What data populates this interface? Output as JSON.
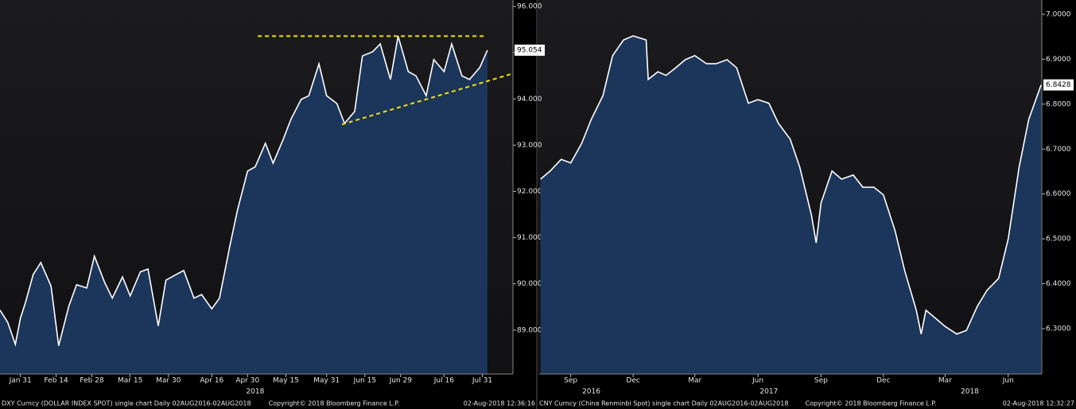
{
  "chart_data": [
    {
      "type": "area",
      "x": [
        "2018-01-23",
        "2018-01-26",
        "2018-01-29",
        "2018-01-31",
        "2018-02-02",
        "2018-02-05",
        "2018-02-08",
        "2018-02-12",
        "2018-02-15",
        "2018-02-19",
        "2018-02-22",
        "2018-02-26",
        "2018-03-01",
        "2018-03-05",
        "2018-03-08",
        "2018-03-12",
        "2018-03-15",
        "2018-03-19",
        "2018-03-22",
        "2018-03-26",
        "2018-03-29",
        "2018-04-02",
        "2018-04-05",
        "2018-04-09",
        "2018-04-12",
        "2018-04-16",
        "2018-04-19",
        "2018-04-23",
        "2018-04-26",
        "2018-04-30",
        "2018-05-03",
        "2018-05-07",
        "2018-05-10",
        "2018-05-14",
        "2018-05-17",
        "2018-05-21",
        "2018-05-24",
        "2018-05-28",
        "2018-05-31",
        "2018-06-04",
        "2018-06-07",
        "2018-06-11",
        "2018-06-14",
        "2018-06-18",
        "2018-06-21",
        "2018-06-25",
        "2018-06-28",
        "2018-07-02",
        "2018-07-05",
        "2018-07-09",
        "2018-07-12",
        "2018-07-16",
        "2018-07-19",
        "2018-07-23",
        "2018-07-26",
        "2018-07-30",
        "2018-08-02"
      ],
      "values": [
        89.43,
        89.17,
        88.69,
        89.26,
        89.6,
        90.2,
        90.46,
        89.95,
        88.66,
        89.52,
        89.98,
        89.91,
        90.6,
        90.03,
        89.69,
        90.15,
        89.74,
        90.26,
        90.32,
        89.09,
        90.08,
        90.2,
        90.29,
        89.69,
        89.77,
        89.46,
        89.69,
        90.8,
        91.58,
        92.44,
        92.53,
        93.04,
        92.61,
        93.13,
        93.56,
        93.99,
        94.07,
        94.76,
        94.07,
        93.9,
        93.47,
        93.73,
        94.93,
        95.02,
        95.19,
        94.42,
        95.36,
        94.59,
        94.5,
        94.07,
        94.85,
        94.59,
        95.19,
        94.5,
        94.42,
        94.68,
        95.054
      ],
      "color": "#ffffff",
      "area_color": "#1d3a63",
      "xlim": [
        "2018-01-23",
        "2018-08-12"
      ],
      "ylim": [
        88.05,
        96.14
      ],
      "yticks": [
        {
          "value": 89,
          "label": "89.000"
        },
        {
          "value": 90,
          "label": "90.000"
        },
        {
          "value": 91,
          "label": "91.000"
        },
        {
          "value": 92,
          "label": "92.000"
        },
        {
          "value": 93,
          "label": "93.000"
        },
        {
          "value": 94,
          "label": "94.000"
        },
        {
          "value": 95,
          "label": "95.000"
        },
        {
          "value": 96,
          "label": "96.000"
        }
      ],
      "xticks": [
        {
          "value": "2018-01-31",
          "label": "Jan 31"
        },
        {
          "value": "2018-02-14",
          "label": "Feb 14"
        },
        {
          "value": "2018-02-28",
          "label": "Feb 28"
        },
        {
          "value": "2018-03-15",
          "label": "Mar 15"
        },
        {
          "value": "2018-03-30",
          "label": "Mar 30"
        },
        {
          "value": "2018-04-16",
          "label": "Apr 16"
        },
        {
          "value": "2018-04-30",
          "label": "Apr 30"
        },
        {
          "value": "2018-05-15",
          "label": "May 15"
        },
        {
          "value": "2018-05-31",
          "label": "May 31"
        },
        {
          "value": "2018-06-15",
          "label": "Jun 15"
        },
        {
          "value": "2018-06-29",
          "label": "Jun 29"
        },
        {
          "value": "2018-07-16",
          "label": "Jul 16"
        },
        {
          "value": "2018-07-31",
          "label": "Jul 31"
        }
      ],
      "year_labels": [
        {
          "value": "2018-05-03",
          "label": "2018"
        }
      ],
      "last_value": {
        "value": 95.054,
        "label": "95.054"
      },
      "annotations": [
        {
          "x": [
            "2018-05-04",
            "2018-08-01"
          ],
          "y": [
            95.36,
            95.36
          ],
          "color": "#f5e400"
        },
        {
          "x": [
            "2018-06-06",
            "2018-08-12"
          ],
          "y": [
            93.45,
            94.55
          ],
          "color": "#f5e400"
        }
      ],
      "footer_left": "DXY Curncy (DOLLAR INDEX SPOT) single chart  Daily 02AUG2016-02AUG2018",
      "footer_center": "Copyright© 2018 Bloomberg Finance L.P.",
      "footer_right": "02-Aug-2018 12:36:16"
    },
    {
      "type": "area",
      "x": [
        "2016-08-02",
        "2016-08-16",
        "2016-09-01",
        "2016-09-15",
        "2016-10-01",
        "2016-10-15",
        "2016-11-01",
        "2016-11-15",
        "2016-12-01",
        "2016-12-15",
        "2017-01-03",
        "2017-01-06",
        "2017-01-20",
        "2017-02-01",
        "2017-02-15",
        "2017-03-01",
        "2017-03-15",
        "2017-04-01",
        "2017-04-15",
        "2017-05-01",
        "2017-05-15",
        "2017-06-01",
        "2017-06-15",
        "2017-07-01",
        "2017-07-15",
        "2017-08-01",
        "2017-08-15",
        "2017-09-01",
        "2017-09-08",
        "2017-09-15",
        "2017-10-01",
        "2017-10-15",
        "2017-11-01",
        "2017-11-15",
        "2017-12-01",
        "2017-12-15",
        "2018-01-01",
        "2018-01-15",
        "2018-02-01",
        "2018-02-08",
        "2018-02-15",
        "2018-03-01",
        "2018-03-15",
        "2018-04-01",
        "2018-04-15",
        "2018-05-01",
        "2018-05-15",
        "2018-06-01",
        "2018-06-15",
        "2018-07-01",
        "2018-07-15",
        "2018-08-02"
      ],
      "values": [
        6.633,
        6.651,
        6.677,
        6.669,
        6.713,
        6.766,
        6.819,
        6.908,
        6.943,
        6.952,
        6.943,
        6.855,
        6.872,
        6.864,
        6.881,
        6.899,
        6.908,
        6.89,
        6.89,
        6.899,
        6.881,
        6.802,
        6.81,
        6.802,
        6.757,
        6.722,
        6.66,
        6.553,
        6.491,
        6.58,
        6.651,
        6.633,
        6.642,
        6.615,
        6.615,
        6.598,
        6.518,
        6.429,
        6.341,
        6.288,
        6.341,
        6.323,
        6.305,
        6.288,
        6.296,
        6.35,
        6.385,
        6.412,
        6.5,
        6.66,
        6.766,
        6.8428
      ],
      "color": "#ffffff",
      "area_color": "#1d3a63",
      "xlim": [
        "2016-07-31",
        "2018-08-03"
      ],
      "ylim": [
        6.199,
        7.0319
      ],
      "yticks": [
        {
          "value": 6.3,
          "label": "6.3000"
        },
        {
          "value": 6.4,
          "label": "6.4000"
        },
        {
          "value": 6.5,
          "label": "6.5000"
        },
        {
          "value": 6.6,
          "label": "6.6000"
        },
        {
          "value": 6.7,
          "label": "6.7000"
        },
        {
          "value": 6.8,
          "label": "6.8000"
        },
        {
          "value": 6.9,
          "label": "6.9000"
        },
        {
          "value": 7,
          "label": "7.0000"
        }
      ],
      "xticks": [
        {
          "value": "2016-09-15",
          "label": "Sep"
        },
        {
          "value": "2016-12-15",
          "label": "Dec"
        },
        {
          "value": "2017-03-15",
          "label": "Mar"
        },
        {
          "value": "2017-06-15",
          "label": "Jun"
        },
        {
          "value": "2017-09-15",
          "label": "Sep"
        },
        {
          "value": "2017-12-15",
          "label": "Dec"
        },
        {
          "value": "2018-03-15",
          "label": "Mar"
        },
        {
          "value": "2018-06-15",
          "label": "Jun"
        }
      ],
      "year_labels": [
        {
          "value": "2016-10-15",
          "label": "2016"
        },
        {
          "value": "2017-07-01",
          "label": "2017"
        },
        {
          "value": "2018-04-20",
          "label": "2018"
        }
      ],
      "last_value": {
        "value": 6.8428,
        "label": "6.8428"
      },
      "annotations": [],
      "footer_left": "CNY Curncy (China Renminbi Spot) single chart  Daily 02AUG2016-02AUG2018",
      "footer_center": "Copyright© 2018 Bloomberg Finance L.P.",
      "footer_right": "02-Aug-2018 12:32:27"
    }
  ]
}
